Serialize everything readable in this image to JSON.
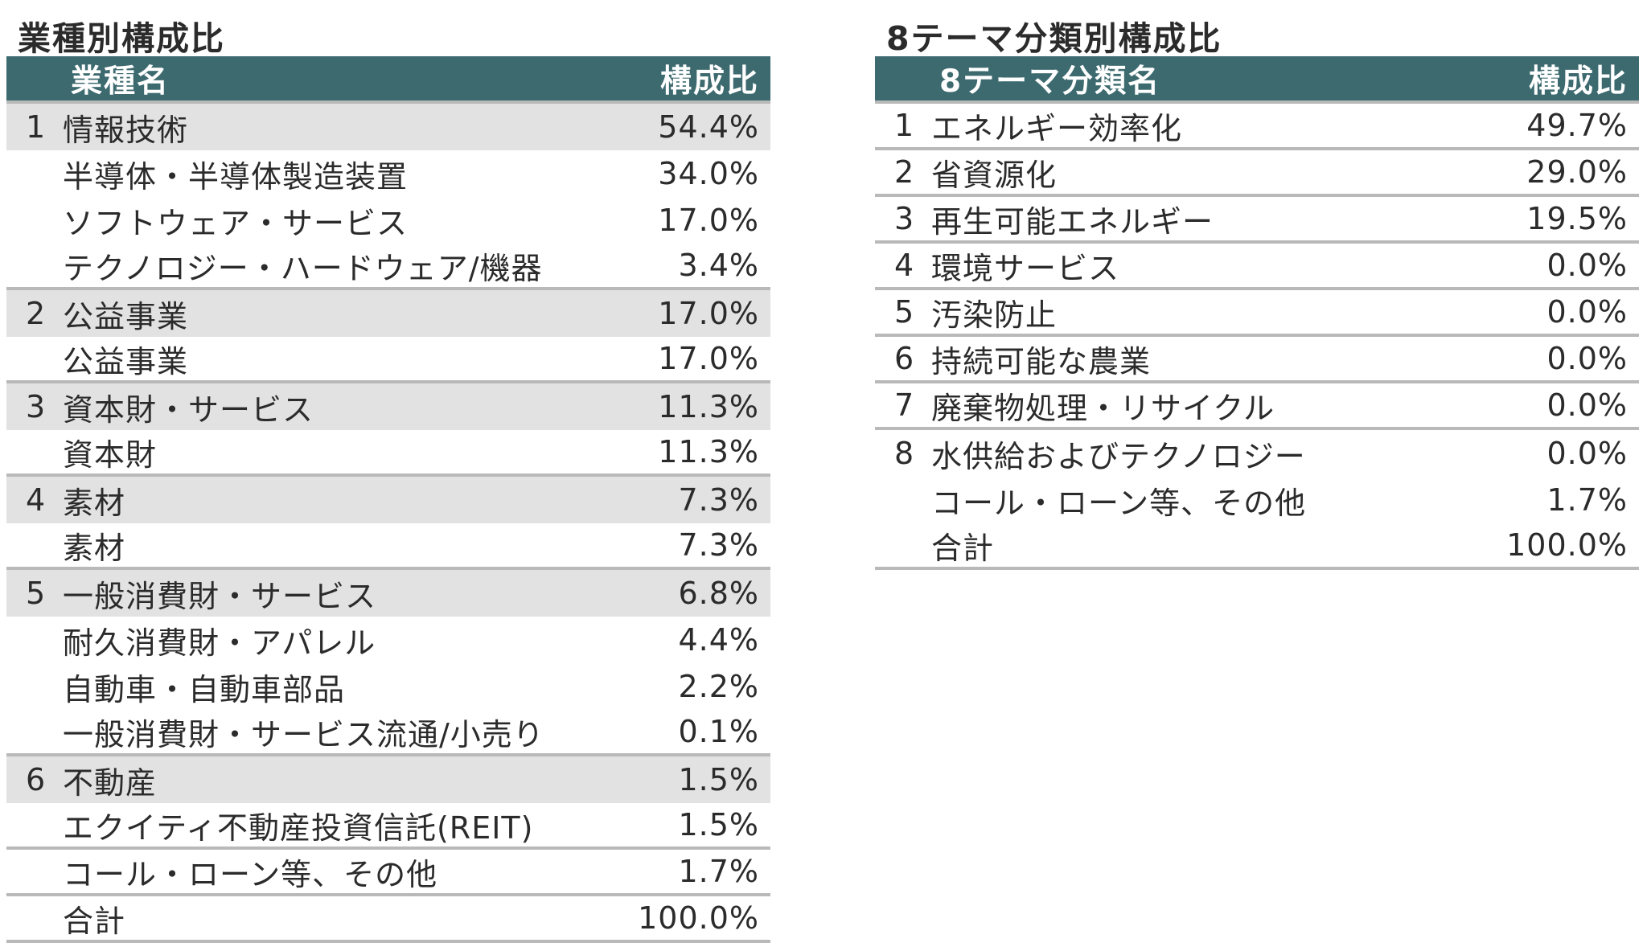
{
  "industry": {
    "title": "業種別構成比",
    "header": {
      "name": "業種名",
      "ratio": "構成比"
    },
    "rows": [
      {
        "num": "1",
        "name": "情報技術",
        "value": "54.4%",
        "shaded": true,
        "border": false
      },
      {
        "num": "",
        "name": "半導体・半導体製造装置",
        "value": "34.0%",
        "shaded": false,
        "border": false
      },
      {
        "num": "",
        "name": "ソフトウェア・サービス",
        "value": "17.0%",
        "shaded": false,
        "border": false
      },
      {
        "num": "",
        "name": "テクノロジー・ハードウェア/機器",
        "value": "3.4%",
        "shaded": false,
        "border": true
      },
      {
        "num": "2",
        "name": "公益事業",
        "value": "17.0%",
        "shaded": true,
        "border": false
      },
      {
        "num": "",
        "name": "公益事業",
        "value": "17.0%",
        "shaded": false,
        "border": true
      },
      {
        "num": "3",
        "name": "資本財・サービス",
        "value": "11.3%",
        "shaded": true,
        "border": false
      },
      {
        "num": "",
        "name": "資本財",
        "value": "11.3%",
        "shaded": false,
        "border": true
      },
      {
        "num": "4",
        "name": "素材",
        "value": "7.3%",
        "shaded": true,
        "border": false
      },
      {
        "num": "",
        "name": "素材",
        "value": "7.3%",
        "shaded": false,
        "border": true
      },
      {
        "num": "5",
        "name": "一般消費財・サービス",
        "value": "6.8%",
        "shaded": true,
        "border": false
      },
      {
        "num": "",
        "name": "耐久消費財・アパレル",
        "value": "4.4%",
        "shaded": false,
        "border": false
      },
      {
        "num": "",
        "name": "自動車・自動車部品",
        "value": "2.2%",
        "shaded": false,
        "border": false
      },
      {
        "num": "",
        "name": "一般消費財・サービス流通/小売り",
        "value": "0.1%",
        "shaded": false,
        "border": true
      },
      {
        "num": "6",
        "name": "不動産",
        "value": "1.5%",
        "shaded": true,
        "border": false
      },
      {
        "num": "",
        "name": "エクイティ不動産投資信託(REIT)",
        "value": "1.5%",
        "shaded": false,
        "border": true
      },
      {
        "num": "",
        "name": "コール・ローン等、その他",
        "value": "1.7%",
        "shaded": false,
        "border": true
      },
      {
        "num": "",
        "name": "合計",
        "value": "100.0%",
        "shaded": false,
        "border": true
      }
    ]
  },
  "theme": {
    "title": "8テーマ分類別構成比",
    "header": {
      "name": "8テーマ分類名",
      "ratio": "構成比"
    },
    "rows": [
      {
        "num": "1",
        "name": "エネルギー効率化",
        "value": "49.7%",
        "border": true
      },
      {
        "num": "2",
        "name": "省資源化",
        "value": "29.0%",
        "border": true
      },
      {
        "num": "3",
        "name": "再生可能エネルギー",
        "value": "19.5%",
        "border": true
      },
      {
        "num": "4",
        "name": "環境サービス",
        "value": "0.0%",
        "border": true
      },
      {
        "num": "5",
        "name": "汚染防止",
        "value": "0.0%",
        "border": true
      },
      {
        "num": "6",
        "name": "持続可能な農業",
        "value": "0.0%",
        "border": true
      },
      {
        "num": "7",
        "name": "廃棄物処理・リサイクル",
        "value": "0.0%",
        "border": true
      },
      {
        "num": "8",
        "name": "水供給およびテクノロジー",
        "value": "0.0%",
        "border": false
      },
      {
        "num": "",
        "name": "コール・ローン等、その他",
        "value": "1.7%",
        "border": false
      },
      {
        "num": "",
        "name": "合計",
        "value": "100.0%",
        "border": true
      }
    ]
  },
  "colors": {
    "header_bg": "#3c6a6f",
    "shade": "#e2e2e2",
    "rule": "#b9b9b9"
  }
}
